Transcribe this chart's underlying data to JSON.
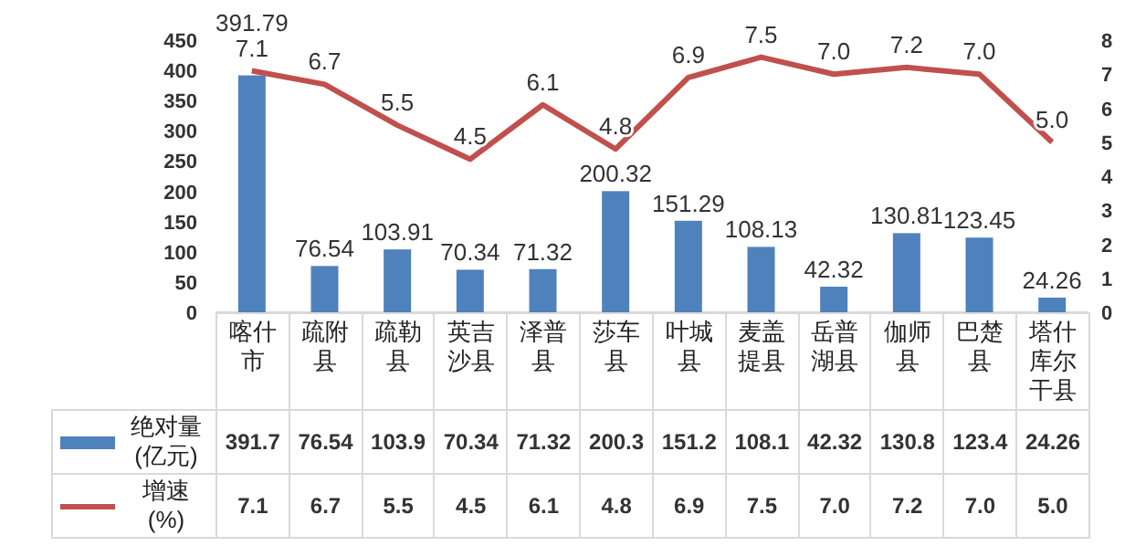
{
  "chart_data": {
    "type": "bar",
    "categories": [
      "喀什市",
      "疏附县",
      "疏勒县",
      "英吉沙县",
      "泽普县",
      "莎车县",
      "叶城县",
      "麦盖提县",
      "岳普湖县",
      "伽师县",
      "巴楚县",
      "塔什库尔干县"
    ],
    "series": [
      {
        "name": "绝对量(亿元)",
        "color": "#4f81bd",
        "values": [
          391.79,
          76.54,
          103.91,
          70.34,
          71.32,
          200.32,
          151.29,
          108.13,
          42.32,
          130.81,
          123.45,
          24.26
        ]
      },
      {
        "name": "增速(%)",
        "type": "line",
        "axis": "y2",
        "color": "#c0504d",
        "values": [
          7.1,
          6.7,
          5.5,
          4.5,
          6.1,
          4.8,
          6.9,
          7.5,
          7.0,
          7.2,
          7.0,
          5.0
        ],
        "value_labels": [
          "7.1",
          "6.7",
          "5.5",
          "4.5",
          "6.1",
          "4.8",
          "6.9",
          "7.5",
          "7.0",
          "7.2",
          "7.0",
          "5.0"
        ]
      }
    ],
    "annotations": [
      "391.7",
      "76.54",
      "103.9",
      "70.34",
      "71.32",
      "200.3",
      "151.2",
      "108.1",
      "42.32",
      "130.8",
      "123.4",
      "24.26"
    ],
    "data_labels": true,
    "ylim": [
      0,
      450
    ],
    "yticks": [
      0,
      50,
      100,
      150,
      200,
      250,
      300,
      350,
      400,
      450
    ],
    "y2lim": [
      0,
      8
    ],
    "y2ticks": [
      0,
      1,
      2,
      3,
      4,
      5,
      6,
      7,
      8
    ],
    "legend": "bottom",
    "grid": false,
    "marker": "none",
    "line_style": "solid"
  }
}
